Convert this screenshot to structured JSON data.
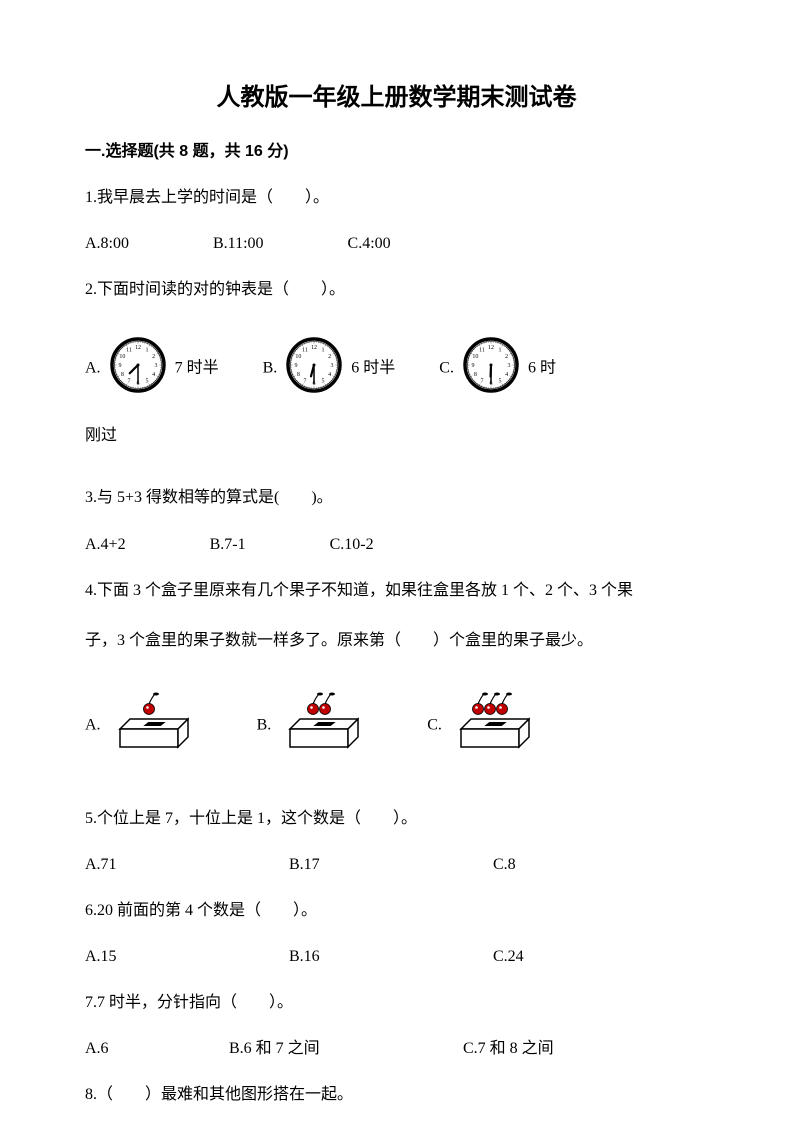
{
  "title": "人教版一年级上册数学期末测试卷",
  "section1": {
    "header": "一.选择题(共 8 题，共 16 分)"
  },
  "q1": {
    "text": "1.我早晨去上学的时间是（　　）。",
    "a": "A.8:00",
    "b": "B.11:00",
    "c": "C.4:00"
  },
  "q2": {
    "text": "2.下面时间读的对的钟表是（　　）。",
    "a_prefix": "A.",
    "a_suffix": "7 时半",
    "b_prefix": "B.",
    "b_suffix": "6 时半",
    "c_prefix": "C.",
    "c_suffix": "6 时",
    "extra": "刚过"
  },
  "q3": {
    "text": "3.与 5+3 得数相等的算式是(　　)。",
    "a": "A.4+2",
    "b": "B.7-1",
    "c": "C.10-2"
  },
  "q4": {
    "text1": "4.下面 3 个盒子里原来有几个果子不知道，如果往盒里各放 1 个、2 个、3 个果",
    "text2": "子，3 个盒里的果子数就一样多了。原来第（　　）个盒里的果子最少。",
    "a_prefix": "A.",
    "b_prefix": "B.",
    "c_prefix": "C."
  },
  "q5": {
    "text": "5.个位上是 7，十位上是 1，这个数是（　　）。",
    "a": "A.71",
    "b": "B.17",
    "c": "C.8"
  },
  "q6": {
    "text": "6.20 前面的第 4 个数是（　　）。",
    "a": "A.15",
    "b": "B.16",
    "c": "C.24"
  },
  "q7": {
    "text": "7.7 时半，分针指向（　　）。",
    "a": "A.6",
    "b": "B.6 和 7 之间",
    "c": "C.7 和 8 之间"
  },
  "q8": {
    "text": "8.（　　）最难和其他图形搭在一起。"
  },
  "clock_style": {
    "size": 58,
    "outer_stroke": "#000000",
    "face_fill": "#ffffff",
    "num_fontsize": 6
  },
  "clocks": [
    {
      "hour_angle": 225,
      "min_angle": 180
    },
    {
      "hour_angle": 195,
      "min_angle": 180
    },
    {
      "hour_angle": 182,
      "min_angle": 180
    }
  ],
  "box_style": {
    "width": 80,
    "height": 70,
    "cherry_color": "#c00000",
    "box_fill": "#ffffff",
    "box_stroke": "#000000"
  },
  "boxes": [
    {
      "cherries": 1
    },
    {
      "cherries": 2
    },
    {
      "cherries": 3
    }
  ]
}
